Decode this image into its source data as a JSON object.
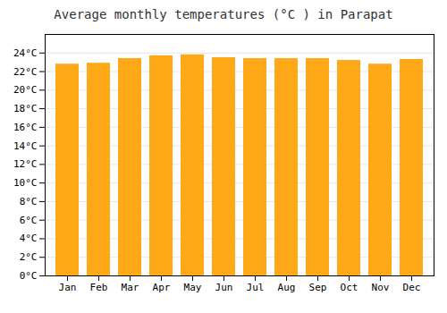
{
  "chart_data": {
    "type": "bar",
    "title": "Average monthly temperatures (°C ) in Parapat",
    "categories": [
      "Jan",
      "Feb",
      "Mar",
      "Apr",
      "May",
      "Jun",
      "Jul",
      "Aug",
      "Sep",
      "Oct",
      "Nov",
      "Dec"
    ],
    "values": [
      22.8,
      22.9,
      23.4,
      23.7,
      23.8,
      23.5,
      23.4,
      23.4,
      23.4,
      23.2,
      22.8,
      23.3
    ],
    "color": "#FFA818",
    "ylim": [
      0,
      26
    ],
    "yticks": [
      {
        "value": 0,
        "label": "0°C"
      },
      {
        "value": 2,
        "label": "2°C"
      },
      {
        "value": 4,
        "label": "4°C"
      },
      {
        "value": 6,
        "label": "6°C"
      },
      {
        "value": 8,
        "label": "8°C"
      },
      {
        "value": 10,
        "label": "10°C"
      },
      {
        "value": 12,
        "label": "12°C"
      },
      {
        "value": 14,
        "label": "14°C"
      },
      {
        "value": 16,
        "label": "16°C"
      },
      {
        "value": 18,
        "label": "18°C"
      },
      {
        "value": 20,
        "label": "20°C"
      },
      {
        "value": 22,
        "label": "22°C"
      },
      {
        "value": 24,
        "label": "24°C"
      }
    ],
    "grid": true
  }
}
